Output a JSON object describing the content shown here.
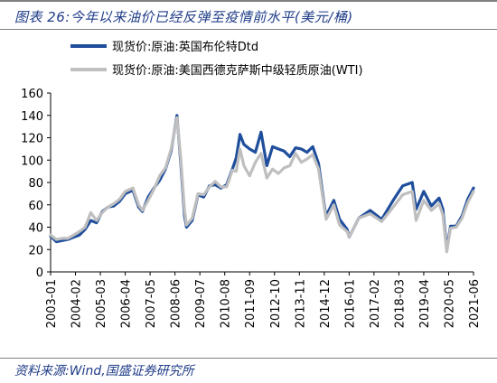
{
  "header": {
    "title": "图表 26:今年以来油价已经反弹至疫情前水平(美元/桶)"
  },
  "footer": {
    "source": "资料来源:Wind,国盛证券研究所"
  },
  "colors": {
    "brent": "#1f4e9c",
    "wti": "#bfbfbf",
    "text_accent": "#1f3c88"
  },
  "chart_data": {
    "type": "line",
    "title": "",
    "xlabel": "",
    "ylabel": "",
    "ylim": [
      0,
      160
    ],
    "yticks": [
      0,
      20,
      40,
      60,
      80,
      100,
      120,
      140,
      160
    ],
    "xlim": [
      "2003-01",
      "2021-06"
    ],
    "xticks": [
      "2003-01",
      "2004-02",
      "2005-03",
      "2006-04",
      "2007-05",
      "2008-06",
      "2009-07",
      "2010-08",
      "2011-09",
      "2012-10",
      "2013-11",
      "2014-12",
      "2016-01",
      "2017-02",
      "2018-03",
      "2019-04",
      "2020-05",
      "2021-06"
    ],
    "grid": false,
    "legend_position": "top-left",
    "series": [
      {
        "name": "现货价:原油:英国布伦特Dtd",
        "color": "#1f4e9c",
        "x": [
          "2003-01",
          "2003-04",
          "2003-07",
          "2003-10",
          "2004-01",
          "2004-04",
          "2004-07",
          "2004-10",
          "2005-01",
          "2005-04",
          "2005-07",
          "2005-10",
          "2006-01",
          "2006-04",
          "2006-08",
          "2006-11",
          "2007-01",
          "2007-04",
          "2007-07",
          "2007-10",
          "2008-01",
          "2008-04",
          "2008-07",
          "2008-09",
          "2008-11",
          "2008-12",
          "2009-03",
          "2009-06",
          "2009-09",
          "2009-12",
          "2010-03",
          "2010-06",
          "2010-09",
          "2010-12",
          "2011-02",
          "2011-04",
          "2011-06",
          "2011-09",
          "2011-12",
          "2012-03",
          "2012-06",
          "2012-09",
          "2012-12",
          "2013-03",
          "2013-06",
          "2013-09",
          "2013-12",
          "2014-03",
          "2014-06",
          "2014-09",
          "2014-12",
          "2015-01",
          "2015-05",
          "2015-08",
          "2015-12",
          "2016-01",
          "2016-06",
          "2016-12",
          "2017-06",
          "2017-12",
          "2018-05",
          "2018-10",
          "2018-12",
          "2019-04",
          "2019-08",
          "2019-12",
          "2020-02",
          "2020-04",
          "2020-06",
          "2020-09",
          "2020-12",
          "2021-03",
          "2021-06"
        ],
        "values": [
          32,
          27,
          28,
          29,
          31,
          33,
          38,
          46,
          44,
          54,
          58,
          59,
          63,
          70,
          73,
          58,
          54,
          67,
          75,
          82,
          92,
          108,
          140,
          98,
          50,
          40,
          46,
          69,
          67,
          77,
          78,
          75,
          78,
          92,
          102,
          123,
          114,
          110,
          107,
          125,
          95,
          112,
          110,
          108,
          103,
          111,
          110,
          107,
          112,
          97,
          60,
          50,
          64,
          47,
          38,
          31,
          48,
          55,
          47,
          64,
          77,
          80,
          56,
          72,
          59,
          66,
          56,
          20,
          41,
          41,
          50,
          65,
          75
        ]
      },
      {
        "name": "现货价:原油:美国西德克萨斯中级轻质原油(WTI)",
        "color": "#bfbfbf",
        "x": [
          "2003-01",
          "2003-04",
          "2003-07",
          "2003-10",
          "2004-01",
          "2004-04",
          "2004-07",
          "2004-10",
          "2005-01",
          "2005-04",
          "2005-07",
          "2005-10",
          "2006-01",
          "2006-04",
          "2006-08",
          "2006-11",
          "2007-01",
          "2007-04",
          "2007-07",
          "2007-10",
          "2008-01",
          "2008-04",
          "2008-07",
          "2008-09",
          "2008-11",
          "2008-12",
          "2009-03",
          "2009-06",
          "2009-09",
          "2009-12",
          "2010-03",
          "2010-06",
          "2010-09",
          "2010-12",
          "2011-02",
          "2011-04",
          "2011-06",
          "2011-09",
          "2011-12",
          "2012-03",
          "2012-06",
          "2012-09",
          "2012-12",
          "2013-03",
          "2013-06",
          "2013-09",
          "2013-12",
          "2014-03",
          "2014-06",
          "2014-09",
          "2014-12",
          "2015-01",
          "2015-05",
          "2015-08",
          "2015-12",
          "2016-01",
          "2016-06",
          "2016-12",
          "2017-06",
          "2017-12",
          "2018-05",
          "2018-10",
          "2018-12",
          "2019-04",
          "2019-08",
          "2019-12",
          "2020-02",
          "2020-04",
          "2020-06",
          "2020-09",
          "2020-12",
          "2021-03",
          "2021-06"
        ],
        "values": [
          33,
          29,
          30,
          30,
          33,
          36,
          40,
          53,
          46,
          53,
          58,
          61,
          65,
          72,
          75,
          60,
          55,
          64,
          74,
          86,
          93,
          110,
          138,
          102,
          55,
          42,
          48,
          70,
          69,
          76,
          81,
          76,
          76,
          91,
          90,
          110,
          95,
          86,
          98,
          106,
          84,
          92,
          88,
          93,
          95,
          106,
          98,
          101,
          105,
          92,
          58,
          47,
          60,
          42,
          36,
          31,
          48,
          52,
          45,
          58,
          69,
          72,
          46,
          64,
          55,
          61,
          51,
          18,
          39,
          40,
          48,
          62,
          72
        ]
      }
    ]
  }
}
